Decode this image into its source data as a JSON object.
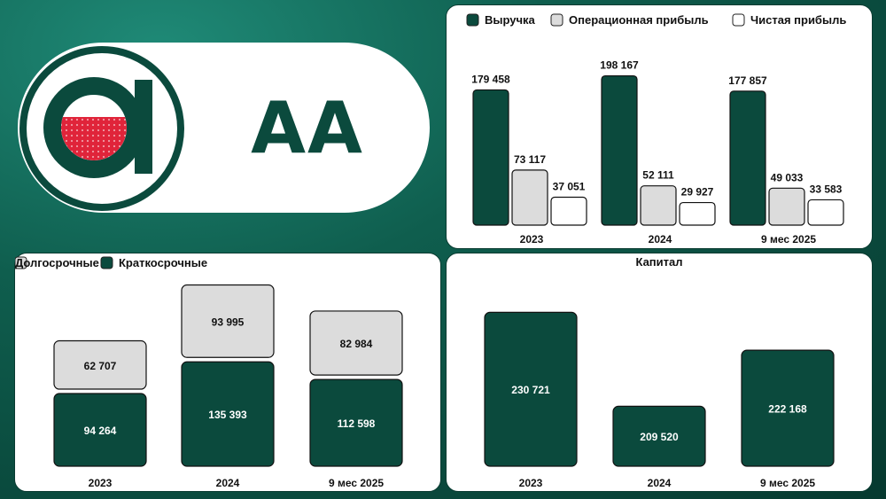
{
  "brand": {
    "ticker": "AA",
    "colors": {
      "dark_green": "#0b4a3d",
      "light_gray": "#dcdcdc",
      "white": "#ffffff",
      "logo_red": "#e0243a"
    },
    "logo_icon": "letter-a-logo-icon"
  },
  "chart_data": [
    {
      "id": "revenue",
      "type": "bar",
      "title": "",
      "categories": [
        "2023",
        "2024",
        "9 мес 2025"
      ],
      "series": [
        {
          "name": "Выручка",
          "values": [
            179458,
            198167,
            177857
          ],
          "labels": [
            "179 458",
            "198 167",
            "177 857"
          ],
          "color": "#0b4a3d"
        },
        {
          "name": "Операционная прибыль",
          "values": [
            73117,
            52111,
            49033
          ],
          "labels": [
            "73 117",
            "52 111",
            "49 033"
          ],
          "color": "#dcdcdc"
        },
        {
          "name": "Чистая прибыль",
          "values": [
            37051,
            29927,
            33583
          ],
          "labels": [
            "37 051",
            "29 927",
            "33 583"
          ],
          "color": "#ffffff"
        }
      ],
      "ylim": [
        0,
        200000
      ],
      "legend": "top",
      "grid": false
    },
    {
      "id": "debt",
      "type": "bar",
      "stacked": true,
      "title": "",
      "categories": [
        "2023",
        "2024",
        "9 мес 2025"
      ],
      "series": [
        {
          "name": "Краткосрочные",
          "values": [
            94264,
            135393,
            112598
          ],
          "labels": [
            "94 264",
            "135 393",
            "112 598"
          ],
          "color": "#0b4a3d"
        },
        {
          "name": "Долгосрочные",
          "values": [
            62707,
            93995,
            82984
          ],
          "labels": [
            "62 707",
            "93 995",
            "82 984"
          ],
          "color": "#dcdcdc"
        }
      ],
      "ylim": [
        0,
        230000
      ],
      "legend": "top",
      "grid": false
    },
    {
      "id": "capital",
      "type": "bar",
      "title": "Капитал",
      "categories": [
        "2023",
        "2024",
        "9 мес 2025"
      ],
      "series": [
        {
          "values": [
            230721,
            209520,
            222168
          ],
          "labels": [
            "230 721",
            "209 520",
            "222 168"
          ],
          "color": "#0b4a3d"
        }
      ],
      "ylim": [
        200000,
        235000
      ],
      "legend": "none",
      "grid": false
    }
  ]
}
